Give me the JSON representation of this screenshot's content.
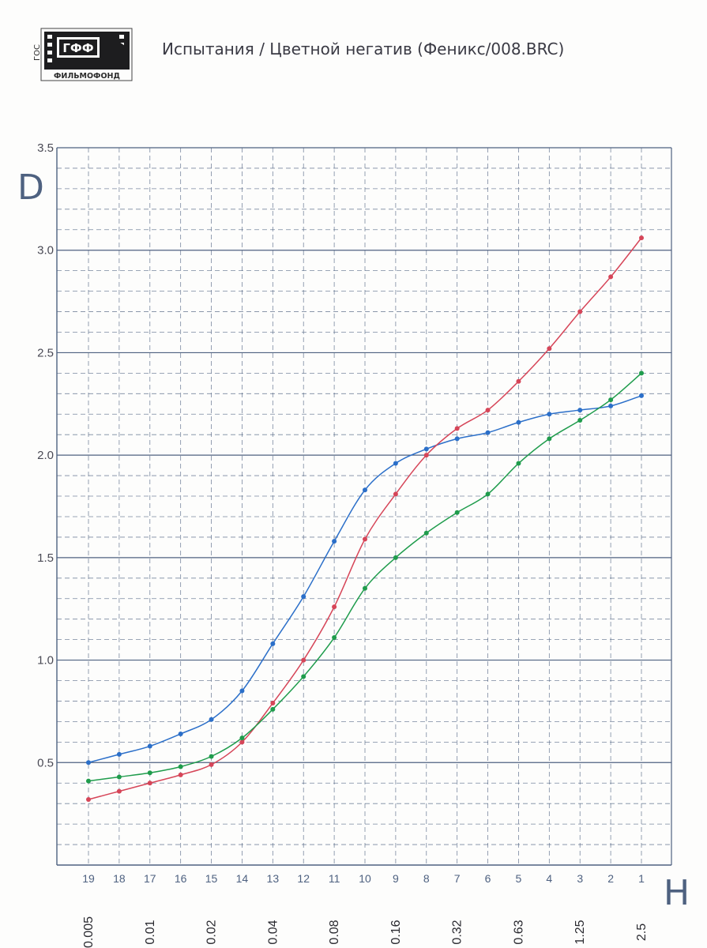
{
  "header": {
    "title": "Испытания / Цветной негатив (Феникс/008.BRC)",
    "logo": {
      "top_text": "ГФФ",
      "side_text": "ГОС",
      "bottom_text": "ФИЛЬМОФОНД"
    }
  },
  "colors": {
    "axis": "#4e6180",
    "grid": "#4e6180",
    "blue": "#2b6fc9",
    "red": "#d64558",
    "green": "#1f9c4c"
  },
  "chart_data": {
    "type": "line",
    "ylabel": "D",
    "xlabel": "H",
    "ylim": [
      0,
      3.5
    ],
    "y_ticks": [
      0.5,
      1.0,
      1.5,
      2.0,
      2.5,
      3.0,
      3.5
    ],
    "y_tick_labels": [
      "0.5",
      "1.0",
      "1.5",
      "2.0",
      "2.5",
      "3.0",
      "3.5"
    ],
    "grid": true,
    "x_steps": [
      "19",
      "18",
      "17",
      "16",
      "15",
      "14",
      "13",
      "12",
      "11",
      "10",
      "9",
      "8",
      "7",
      "6",
      "5",
      "4",
      "3",
      "2",
      "1"
    ],
    "x_exposure_labels": [
      "0.005",
      "",
      "0.01",
      "",
      "0.02",
      "",
      "0.04",
      "",
      "0.08",
      "",
      "0.16",
      "",
      "0.32",
      "",
      "0.63",
      "",
      "1.25",
      "",
      "2.5"
    ],
    "series": [
      {
        "color_key": "blue",
        "values": [
          0.5,
          0.54,
          0.58,
          0.64,
          0.71,
          0.85,
          1.08,
          1.31,
          1.58,
          1.83,
          1.96,
          2.03,
          2.08,
          2.11,
          2.16,
          2.2,
          2.22,
          2.24,
          2.29
        ]
      },
      {
        "color_key": "red",
        "values": [
          0.32,
          0.36,
          0.4,
          0.44,
          0.49,
          0.6,
          0.79,
          1.0,
          1.26,
          1.59,
          1.81,
          2.0,
          2.13,
          2.22,
          2.36,
          2.52,
          2.7,
          2.87,
          3.06
        ]
      },
      {
        "color_key": "green",
        "values": [
          0.41,
          0.43,
          0.45,
          0.48,
          0.53,
          0.62,
          0.76,
          0.92,
          1.11,
          1.35,
          1.5,
          1.62,
          1.72,
          1.81,
          1.96,
          2.08,
          2.17,
          2.27,
          2.4
        ]
      }
    ]
  }
}
